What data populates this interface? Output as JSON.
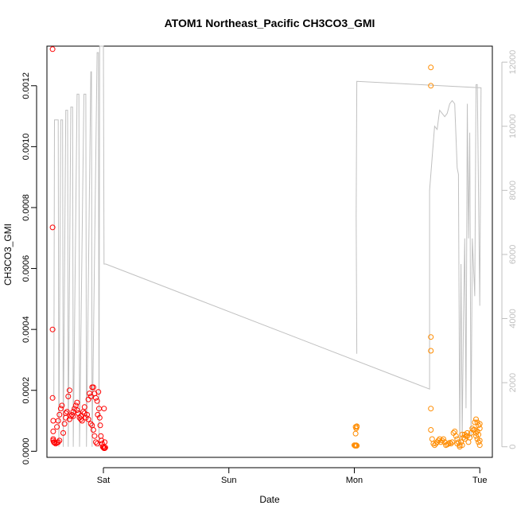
{
  "chart_data": {
    "type": "scatter",
    "title": "ATOM1 Northeast_Pacific CH3CO3_GMI",
    "xlabel": "Date",
    "ylabel": "CH3CO3_GMI",
    "x_ticks": [
      "Sat",
      "Sun",
      "Mon",
      "Tue"
    ],
    "y_ticks": [
      "0.0000",
      "0.0002",
      "0.0004",
      "0.0006",
      "0.0008",
      "0.0010",
      "0.0012"
    ],
    "y2_ticks": [
      "0",
      "2000",
      "4000",
      "6000",
      "8000",
      "10000",
      "12000"
    ],
    "xlim_days": [
      -0.45,
      3.1
    ],
    "ylim": [
      -2e-05,
      0.00133
    ],
    "y2lim": [
      -330,
      12500
    ],
    "grid": false,
    "colors": {
      "series1": "#ff0000",
      "series2": "#ff8c00",
      "altitude": "#c0c0c0",
      "axis": "#000000",
      "right_axis": "#bfbfbf"
    },
    "series": [
      {
        "points": [
          [
            -0.405,
            0.00132
          ],
          [
            -0.405,
            0.000735
          ],
          [
            -0.405,
            0.0004
          ],
          [
            -0.405,
            0.000175
          ],
          [
            -0.4,
            0.0001
          ],
          [
            -0.4,
            6.5e-05
          ],
          [
            -0.4,
            4e-05
          ],
          [
            -0.4,
            3.5e-05
          ],
          [
            -0.395,
            3e-05
          ],
          [
            -0.39,
            2.8e-05
          ],
          [
            -0.38,
            2.5e-05
          ],
          [
            -0.37,
            2.8e-05
          ],
          [
            -0.36,
            3e-05
          ],
          [
            -0.35,
            3.5e-05
          ],
          [
            -0.37,
            8e-05
          ],
          [
            -0.36,
            0.0001
          ],
          [
            -0.35,
            0.00012
          ],
          [
            -0.34,
            0.00014
          ],
          [
            -0.33,
            0.00015
          ],
          [
            -0.32,
            6e-05
          ],
          [
            -0.31,
            9e-05
          ],
          [
            -0.3,
            0.00011
          ],
          [
            -0.29,
            0.00013
          ],
          [
            -0.28,
            0.00018
          ],
          [
            -0.27,
            0.0002
          ],
          [
            -0.26,
            0.000115
          ],
          [
            -0.25,
            0.00012
          ],
          [
            -0.24,
            0.00013
          ],
          [
            -0.23,
            0.00014
          ],
          [
            -0.22,
            0.00015
          ],
          [
            -0.21,
            0.00016
          ],
          [
            -0.2,
            0.000125
          ],
          [
            -0.19,
            0.00011
          ],
          [
            -0.18,
            0.000105
          ],
          [
            -0.17,
            0.0001
          ],
          [
            -0.16,
            0.00013
          ],
          [
            -0.15,
            0.000145
          ],
          [
            -0.14,
            0.00011
          ],
          [
            -0.13,
            0.00012
          ],
          [
            -0.12,
            0.00017
          ],
          [
            -0.11,
            0.00019
          ],
          [
            -0.1,
            0.00018
          ],
          [
            -0.09,
            0.00021
          ],
          [
            -0.08,
            0.00021
          ],
          [
            -0.07,
            0.00019
          ],
          [
            -0.06,
            0.000175
          ],
          [
            -0.05,
            0.000165
          ],
          [
            -0.045,
            0.00012
          ],
          [
            -0.04,
            0.000195
          ],
          [
            -0.035,
            0.00014
          ],
          [
            -0.03,
            0.00011
          ],
          [
            -0.025,
            8.5e-05
          ],
          [
            -0.02,
            5e-05
          ],
          [
            -0.015,
            3.5e-05
          ],
          [
            -0.01,
            2.5e-05
          ],
          [
            -0.005,
            1.5e-05
          ],
          [
            0.0,
            1.2e-05
          ],
          [
            0.005,
            1e-05
          ],
          [
            0.01,
            1e-05
          ],
          [
            0.015,
            1.2e-05
          ],
          [
            -0.09,
            8.5e-05
          ],
          [
            -0.08,
            7e-05
          ],
          [
            -0.07,
            5e-05
          ],
          [
            -0.06,
            3e-05
          ],
          [
            -0.05,
            2.5e-05
          ],
          [
            -0.3,
            0.000125
          ],
          [
            -0.27,
            0.000105
          ],
          [
            -0.24,
            0.000115
          ],
          [
            -0.21,
            0.000135
          ],
          [
            -0.18,
            0.000115
          ],
          [
            -0.15,
            0.000125
          ],
          [
            -0.12,
            0.000105
          ],
          [
            -0.1,
            9e-05
          ],
          [
            0.005,
            0.00014
          ],
          [
            0.01,
            3e-05
          ]
        ]
      },
      {
        "points": [
          [
            2.01,
            8e-05
          ],
          [
            2.015,
            7.5e-05
          ],
          [
            2.02,
            8e-05
          ],
          [
            2.01,
            5.8e-05
          ],
          [
            2.0,
            2e-05
          ],
          [
            2.01,
            1.8e-05
          ],
          [
            2.015,
            2e-05
          ],
          [
            2.02,
            1.8e-05
          ],
          [
            2.005,
            1.8e-05
          ],
          [
            2.02,
            8.2e-05
          ],
          [
            2.61,
            0.00126
          ],
          [
            2.61,
            0.0012
          ],
          [
            2.61,
            0.000375
          ],
          [
            2.61,
            0.00033
          ],
          [
            2.61,
            0.00014
          ],
          [
            2.61,
            7e-05
          ],
          [
            2.62,
            4e-05
          ],
          [
            2.63,
            2.5e-05
          ],
          [
            2.64,
            2e-05
          ],
          [
            2.65,
            2.5e-05
          ],
          [
            2.66,
            3e-05
          ],
          [
            2.67,
            3.5e-05
          ],
          [
            2.68,
            4e-05
          ],
          [
            2.69,
            3e-05
          ],
          [
            2.7,
            3.5e-05
          ],
          [
            2.71,
            4e-05
          ],
          [
            2.72,
            3e-05
          ],
          [
            2.73,
            2e-05
          ],
          [
            2.74,
            2.2e-05
          ],
          [
            2.75,
            2.5e-05
          ],
          [
            2.76,
            2.8e-05
          ],
          [
            2.77,
            2.5e-05
          ],
          [
            2.78,
            3e-05
          ],
          [
            2.79,
            6e-05
          ],
          [
            2.8,
            6.5e-05
          ],
          [
            2.81,
            5e-05
          ],
          [
            2.82,
            4e-05
          ],
          [
            2.83,
            3e-05
          ],
          [
            2.84,
            2e-05
          ],
          [
            2.85,
            3e-05
          ],
          [
            2.86,
            5.5e-05
          ],
          [
            2.87,
            4.5e-05
          ],
          [
            2.88,
            4e-05
          ],
          [
            2.89,
            5e-05
          ],
          [
            2.9,
            5e-05
          ],
          [
            2.91,
            3e-05
          ],
          [
            2.92,
            4.5e-05
          ],
          [
            2.93,
            6e-05
          ],
          [
            2.94,
            7.5e-05
          ],
          [
            2.95,
            7e-05
          ],
          [
            2.96,
            9.5e-05
          ],
          [
            2.97,
            0.000105
          ],
          [
            2.98,
            9.5e-05
          ],
          [
            2.99,
            8.5e-05
          ],
          [
            3.0,
            9e-05
          ],
          [
            2.96,
            7e-05
          ],
          [
            2.97,
            6e-05
          ],
          [
            2.98,
            4e-05
          ],
          [
            2.99,
            3e-05
          ],
          [
            3.0,
            2e-05
          ],
          [
            2.99,
            5.5e-05
          ],
          [
            3.0,
            7.5e-05
          ],
          [
            2.98,
            6.5e-05
          ],
          [
            2.97,
            5e-05
          ],
          [
            3.0,
            3.5e-05
          ],
          [
            2.9,
            6e-05
          ],
          [
            2.88,
            5.5e-05
          ],
          [
            2.86,
            2e-05
          ],
          [
            2.84,
            1.5e-05
          ],
          [
            2.82,
            2.5e-05
          ]
        ]
      },
      {
        "name": "",
        "axis": "right",
        "points": [
          [
            -0.395,
            1500
          ],
          [
            -0.39,
            10200
          ],
          [
            -0.36,
            10200
          ],
          [
            -0.355,
            0
          ],
          [
            -0.34,
            10200
          ],
          [
            -0.325,
            10200
          ],
          [
            -0.32,
            0
          ],
          [
            -0.3,
            10500
          ],
          [
            -0.285,
            10500
          ],
          [
            -0.28,
            0
          ],
          [
            -0.26,
            10600
          ],
          [
            -0.245,
            10600
          ],
          [
            -0.24,
            0
          ],
          [
            -0.21,
            11000
          ],
          [
            -0.195,
            11000
          ],
          [
            -0.19,
            0
          ],
          [
            -0.155,
            11000
          ],
          [
            -0.14,
            11000
          ],
          [
            -0.135,
            0
          ],
          [
            -0.1,
            11700
          ],
          [
            -0.095,
            11700
          ],
          [
            -0.09,
            0
          ],
          [
            -0.05,
            12300
          ],
          [
            -0.04,
            12300
          ],
          [
            -0.035,
            0
          ],
          [
            -0.03,
            12500
          ],
          [
            0.0,
            12500
          ],
          [
            0.005,
            5700
          ],
          [
            0.02,
            5700
          ],
          [
            2.6,
            1800
          ],
          [
            2.6,
            8000
          ],
          [
            2.64,
            10000
          ],
          [
            2.66,
            9900
          ],
          [
            2.68,
            10500
          ],
          [
            2.7,
            10400
          ],
          [
            2.72,
            10300
          ],
          [
            2.74,
            10400
          ],
          [
            2.76,
            10700
          ],
          [
            2.78,
            10800
          ],
          [
            2.8,
            10700
          ],
          [
            2.82,
            8700
          ],
          [
            2.83,
            8500
          ],
          [
            2.84,
            0
          ],
          [
            2.85,
            5700
          ],
          [
            2.86,
            300
          ],
          [
            2.87,
            4000
          ],
          [
            2.88,
            6500
          ],
          [
            2.89,
            1200
          ],
          [
            2.9,
            10700
          ],
          [
            2.91,
            6500
          ],
          [
            2.92,
            9800
          ],
          [
            2.93,
            300
          ],
          [
            2.94,
            6500
          ],
          [
            2.96,
            4700
          ],
          [
            2.97,
            11300
          ],
          [
            2.98,
            11300
          ],
          [
            3.0,
            4400
          ],
          [
            3.01,
            11200
          ],
          [
            2.02,
            11400
          ],
          [
            2.015,
            7200
          ],
          [
            2.02,
            2900
          ]
        ]
      }
    ]
  }
}
